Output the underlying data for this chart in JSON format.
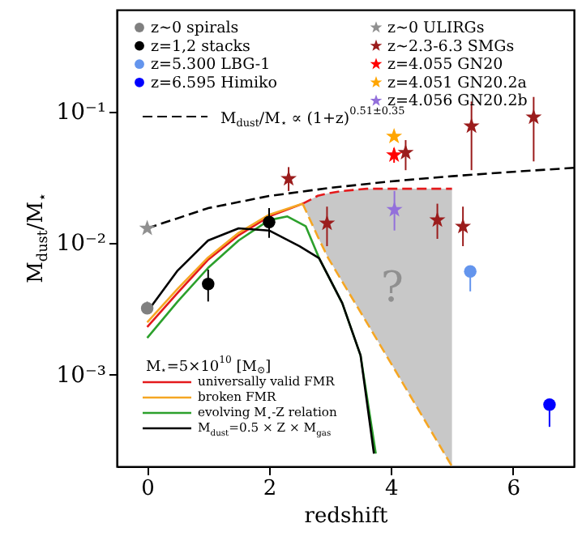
{
  "chart_data": {
    "type": "scatter",
    "xlabel": "redshift",
    "ylabel": "M$_{dust}$/M$_{⋆}$",
    "legend_title": "M$_{⋆}$=5×10$^{10}$ [M$_{⊙}$]",
    "xlim": [
      -0.5,
      7
    ],
    "xticks": [
      0,
      2,
      4,
      6
    ],
    "ylim": [
      0.0002,
      0.6
    ],
    "log": "y",
    "yticks": [
      {
        "value": 0.001,
        "label": "10⁻³"
      },
      {
        "value": 0.01,
        "label": "10⁻²"
      },
      {
        "value": 0.1,
        "label": "10⁻¹"
      }
    ],
    "grid": false,
    "legend": "top left",
    "annotations": [
      "?"
    ],
    "series": [
      {
        "type": "line",
        "name": "universally valid FMR",
        "color": "#e41a1c",
        "line_style": "solid",
        "x": [
          0,
          0.5,
          1,
          1.5,
          2,
          2.55
        ],
        "values": [
          0.0023,
          0.0042,
          0.0075,
          0.0115,
          0.016,
          0.02
        ]
      },
      {
        "type": "line",
        "color": "#e41a1c",
        "line_style": "dashed",
        "x": [
          2.55,
          2.8,
          2.97,
          3.2,
          3.6,
          4.2,
          5.0
        ],
        "values": [
          0.02,
          0.023,
          0.024,
          0.025,
          0.026,
          0.026,
          0.026
        ],
        "upper": [
          0.02,
          0.023,
          0.024,
          0.025,
          0.026,
          0.026,
          0.026
        ],
        "lower": [
          0.02,
          0.0112,
          0.0077,
          0.0051,
          0.0025,
          0.00085,
          0.0002
        ]
      },
      {
        "type": "line",
        "name": "broken FMR",
        "color": "#f5a623",
        "line_style": "solid",
        "x": [
          0,
          0.5,
          1,
          1.5,
          2,
          2.55
        ],
        "values": [
          0.0025,
          0.0045,
          0.0078,
          0.012,
          0.0165,
          0.02
        ]
      },
      {
        "type": "line",
        "color": "#f5a623",
        "line_style": "dashed",
        "x": [
          2.55,
          2.8,
          2.97,
          3.2,
          3.6,
          4.2,
          5.0
        ],
        "values": [
          0.02,
          0.0112,
          0.0077,
          0.0051,
          0.0025,
          0.00085,
          0.0002
        ]
      },
      {
        "type": "line",
        "name": "evolving M$_{⋆}$-Z relation",
        "color": "#2ca02c",
        "line_style": "solid",
        "x": [
          0,
          0.5,
          1,
          1.5,
          2,
          2.3,
          2.6,
          2.82,
          3.2,
          3.5,
          3.75
        ],
        "values": [
          0.0019,
          0.0036,
          0.0065,
          0.0105,
          0.015,
          0.016,
          0.0135,
          0.0077,
          0.0035,
          0.0014,
          0.00025
        ]
      },
      {
        "type": "line",
        "name": "M$_{dust}$=0.5 × Z × M$_{gas}$",
        "color": "#000000",
        "line_style": "solid",
        "x": [
          0,
          0.5,
          1,
          1.5,
          2,
          2.5,
          2.82,
          3.2,
          3.5,
          3.72
        ],
        "values": [
          0.003,
          0.0062,
          0.0105,
          0.013,
          0.0125,
          0.0095,
          0.0077,
          0.0035,
          0.0014,
          0.00025
        ]
      },
      {
        "type": "line",
        "name": "M$_{dust}$/M$_{⋆}$ ∝ (1+z)$^{0.51±0.35}$",
        "color": "#000000",
        "line_style": "dashed",
        "x": [
          0,
          1,
          2,
          3,
          4,
          5,
          6,
          7
        ],
        "values": [
          0.013,
          0.0185,
          0.0229,
          0.0264,
          0.0296,
          0.0324,
          0.035,
          0.0375
        ]
      },
      {
        "name": "z~0 spirals",
        "color": "#808080",
        "marker": "circle",
        "x": [
          0
        ],
        "values": [
          0.0032
        ],
        "errors": [
          [
            0.0029,
            0.0036
          ]
        ]
      },
      {
        "type": "scatter",
        "name": "z=1,2 stacks",
        "color": "#000000",
        "marker": "circle",
        "x": [
          1,
          2
        ],
        "values": [
          0.0049,
          0.0145
        ],
        "errors": [
          [
            0.0036,
            0.0063
          ],
          [
            0.011,
            0.0185
          ]
        ]
      },
      {
        "type": "scatter",
        "name": "z=5.300 LBG-1",
        "color": "#6495ed",
        "marker": "circle",
        "x": [
          5.3
        ],
        "values": [
          0.0061
        ],
        "errors": [
          [
            0.0043,
            0.0061
          ]
        ]
      },
      {
        "type": "scatter",
        "name": "z=6.595 Himiko",
        "color": "#0000ff",
        "marker": "circle",
        "x": [
          6.6
        ],
        "values": [
          0.00059
        ],
        "errors": [
          [
            0.0004,
            0.00059
          ]
        ]
      },
      {
        "type": "scatter",
        "name": "z~0 ULIRGs",
        "color": "#909090",
        "marker": "star",
        "x": [
          0
        ],
        "values": [
          0.013
        ]
      },
      {
        "type": "scatter",
        "name": "z~2.3-6.3 SMGs",
        "color": "#9b1c1c",
        "marker": "star",
        "x": [
          2.32,
          2.95,
          4.24,
          4.76,
          5.18,
          5.32,
          6.34
        ],
        "values": [
          0.031,
          0.0142,
          0.049,
          0.015,
          0.0134,
          0.078,
          0.091
        ],
        "errors": [
          [
            0.025,
            0.038
          ],
          [
            0.0095,
            0.019
          ],
          [
            0.036,
            0.061
          ],
          [
            0.0108,
            0.02
          ],
          [
            0.0095,
            0.019
          ],
          [
            0.036,
            0.12
          ],
          [
            0.042,
            0.13
          ]
        ]
      },
      {
        "type": "scatter",
        "name": "z=4.055 GN20",
        "color": "#ff0000",
        "marker": "star",
        "x": [
          4.05
        ],
        "values": [
          0.047
        ],
        "errors": [
          [
            0.041,
            0.053
          ]
        ]
      },
      {
        "type": "scatter",
        "name": "z=4.051 GN20.2a",
        "color": "#ffa500",
        "marker": "star",
        "x": [
          4.05
        ],
        "values": [
          0.065
        ]
      },
      {
        "type": "scatter",
        "name": "z=4.056 GN20.2b",
        "color": "#9370db",
        "marker": "star",
        "x": [
          4.056
        ],
        "values": [
          0.018
        ],
        "errors": [
          [
            0.0125,
            0.025
          ]
        ]
      }
    ]
  }
}
